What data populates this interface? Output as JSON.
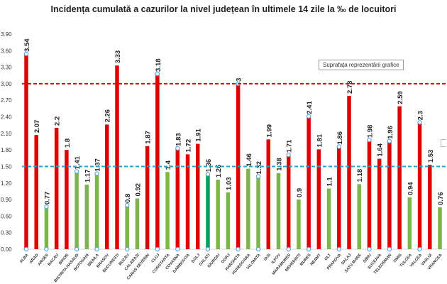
{
  "chart_data": {
    "type": "bar",
    "title": "Incidența cumulată a cazurilor la nivel județean în ultimele 14 zile la ‰ de locuitori",
    "xlabel": "",
    "ylabel": "",
    "ylim": [
      0,
      3.9
    ],
    "yticks": [
      "0.00",
      "0.30",
      "0.60",
      "0.90",
      "1.20",
      "1.50",
      "1.80",
      "2.10",
      "2.40",
      "2.70",
      "3.00",
      "3.30",
      "3.60",
      "3.90"
    ],
    "grid": false,
    "legend": "none",
    "categories": [
      "ALBA",
      "ARAD",
      "ARGES",
      "BACAU",
      "BIHOR",
      "BISTRITA NASAUD",
      "BOTOSANI",
      "BRAILA",
      "BRASOV",
      "BUCURESTI",
      "BUZAU",
      "CALARASI",
      "CARAS SEVERIN",
      "CLUJ",
      "CONSTANTA",
      "COVASNA",
      "DAMBOVITA",
      "DOLJ",
      "GALATI",
      "GIURGIU",
      "GORJ",
      "HARGHITA",
      "HUNEDOARA",
      "IALOMITA",
      "IASI",
      "ILFOV",
      "MARAMURES",
      "MEHEDINTI",
      "MURES",
      "NEAMT",
      "OLT",
      "PRAHOVA",
      "SALAJ",
      "SATU MARE",
      "SIBIU",
      "SUCEAVA",
      "TELEORMAN",
      "TIMIS",
      "TULCEA",
      "VALCEA",
      "VASLUI",
      "VRANCEA"
    ],
    "values": [
      3.54,
      2.07,
      0.77,
      2.2,
      1.8,
      1.41,
      1.17,
      1.37,
      2.26,
      3.33,
      0.8,
      0.92,
      1.87,
      3.18,
      1.4,
      1.83,
      1.72,
      1.91,
      1.36,
      1.26,
      1.03,
      3,
      1.46,
      1.32,
      1.99,
      1.38,
      1.71,
      0.9,
      2.41,
      1.81,
      1.1,
      1.86,
      2.78,
      1.18,
      1.98,
      1.64,
      1.96,
      2.59,
      0.94,
      2.3,
      1.53,
      0.76
    ],
    "labels": [
      "3.54",
      "2.07",
      "0.77",
      "2.2",
      "1.8",
      "1.41",
      "1.17",
      "1.37",
      "2.26",
      "3.33",
      "0.8",
      "0.92",
      "1.87",
      "3.18",
      "1.4",
      "1.83",
      "1.72",
      "1.91",
      "1.36",
      "1.26",
      "1.03",
      "3",
      "1.46",
      "1.32",
      "1.99",
      "1.38",
      "1.71",
      "0.9",
      "2.41",
      "1.81",
      "1.1",
      "1.86",
      "2.78",
      "1.18",
      "1.98",
      "1.64",
      "1.96",
      "2.59",
      "0.94",
      "2.3",
      "1.53",
      "0.76"
    ],
    "reference_lines": [
      {
        "value": 3.0,
        "color": "#e00000",
        "style": "dashed"
      },
      {
        "value": 1.5,
        "color": "#2aa0d8",
        "style": "dashed"
      }
    ],
    "colors": {
      "above_threshold": "#e00000",
      "below_threshold": "#7ab648",
      "selected": "#00a060",
      "selection_handle": "#5aa8e0"
    },
    "selected_series_handles": true,
    "chart_area_tooltip": "Suprafața reprezentării grafice"
  }
}
